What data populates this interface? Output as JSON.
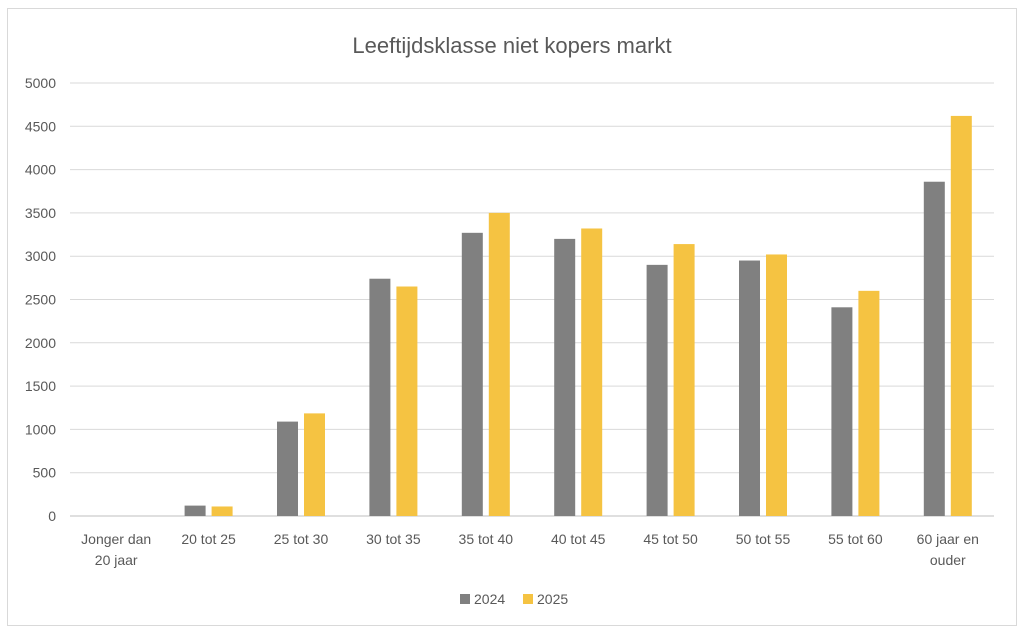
{
  "chart_data": {
    "type": "bar",
    "title": "Leeftijdsklasse niet kopers markt",
    "categories": [
      [
        "Jonger dan",
        "20 jaar"
      ],
      [
        "20 tot 25"
      ],
      [
        "25 tot 30"
      ],
      [
        "30 tot 35"
      ],
      [
        "35 tot 40"
      ],
      [
        "40 tot 45"
      ],
      [
        "45 tot 50"
      ],
      [
        "50 tot 55"
      ],
      [
        "55 tot 60"
      ],
      [
        "60 jaar en",
        "ouder"
      ]
    ],
    "series": [
      {
        "name": "2024",
        "color": "#808080",
        "values": [
          0,
          120,
          1090,
          2740,
          3270,
          3200,
          2900,
          2950,
          2410,
          3860
        ]
      },
      {
        "name": "2025",
        "color": "#f5c342",
        "values": [
          0,
          110,
          1185,
          2650,
          3500,
          3320,
          3140,
          3020,
          2600,
          4620
        ]
      }
    ],
    "ylim": [
      0,
      5000
    ],
    "yticks": [
      0,
      500,
      1000,
      1500,
      2000,
      2500,
      3000,
      3500,
      4000,
      4500,
      5000
    ],
    "grid": true,
    "legend_position": "bottom"
  }
}
